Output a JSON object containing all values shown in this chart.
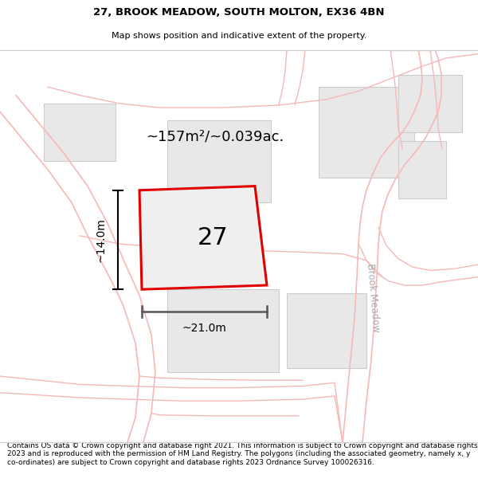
{
  "title_line1": "27, BROOK MEADOW, SOUTH MOLTON, EX36 4BN",
  "title_line2": "Map shows position and indicative extent of the property.",
  "footer_text": "Contains OS data © Crown copyright and database right 2021. This information is subject to Crown copyright and database rights 2023 and is reproduced with the permission of HM Land Registry. The polygons (including the associated geometry, namely x, y co-ordinates) are subject to Crown copyright and database rights 2023 Ordnance Survey 100026316.",
  "area_text": "~157m²/~0.039ac.",
  "label_number": "27",
  "width_label": "~21.0m",
  "height_label": "~14.0m",
  "bg_color": "#ffffff",
  "map_bg": "#ffffff",
  "road_line_color": "#f5b8b8",
  "building_edge_color": "#cccccc",
  "building_face_color": "#e8e8e8",
  "red_outline": "#e00000",
  "road_label": "Brook Meadow",
  "title_fontsize": 9.5,
  "footer_fontsize": 6.8
}
